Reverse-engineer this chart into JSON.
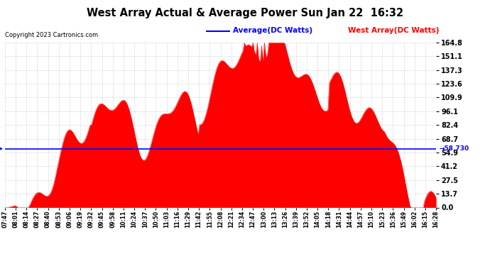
{
  "title": "West Array Actual & Average Power Sun Jan 22  16:32",
  "copyright": "Copyright 2023 Cartronics.com",
  "average_label": "Average(DC Watts)",
  "west_label": "West Array(DC Watts)",
  "average_value": 58.73,
  "y_ticks": [
    0.0,
    13.7,
    27.5,
    41.2,
    54.9,
    68.7,
    82.4,
    96.1,
    109.9,
    123.6,
    137.3,
    151.1,
    164.8
  ],
  "y_max": 164.8,
  "y_min": 0.0,
  "average_annotation": "58.730",
  "background_color": "#ffffff",
  "fill_color": "#ff0000",
  "line_color": "#0000ff",
  "grid_color": "#cccccc",
  "x_labels": [
    "07:47",
    "08:01",
    "08:14",
    "08:27",
    "08:40",
    "08:53",
    "09:06",
    "09:19",
    "09:32",
    "09:45",
    "09:58",
    "10:11",
    "10:24",
    "10:37",
    "10:50",
    "11:03",
    "11:16",
    "11:29",
    "11:42",
    "11:55",
    "12:08",
    "12:21",
    "12:34",
    "12:47",
    "13:00",
    "13:13",
    "13:26",
    "13:39",
    "13:52",
    "14:05",
    "14:18",
    "14:31",
    "14:44",
    "14:57",
    "15:10",
    "15:23",
    "15:36",
    "15:49",
    "16:02",
    "16:15",
    "16:28"
  ],
  "figsize": [
    6.9,
    3.75
  ],
  "dpi": 100
}
